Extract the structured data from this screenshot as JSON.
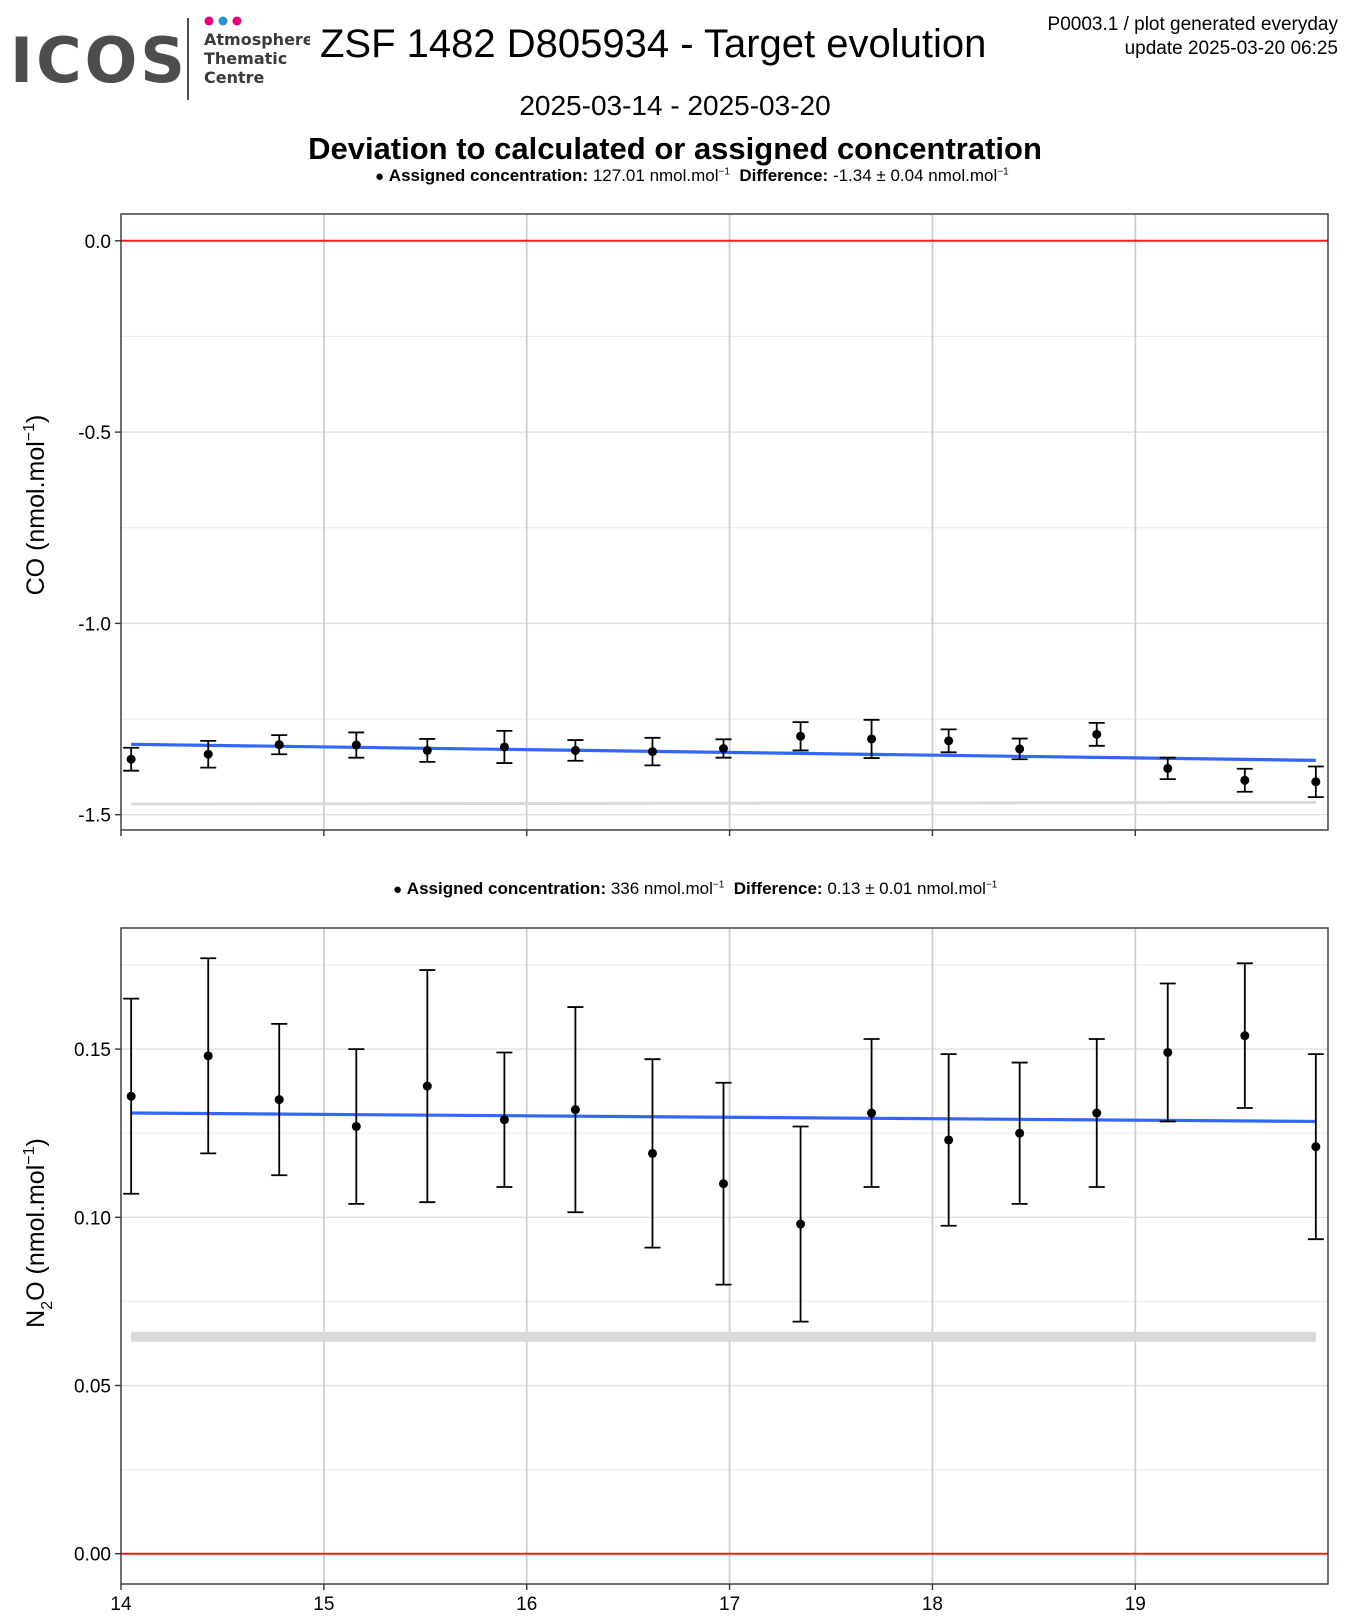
{
  "header": {
    "logo": {
      "brand": "ICOS",
      "org_lines": [
        "Atmosphere",
        "Thematic",
        "Centre"
      ],
      "dot_colors": [
        "#e6007e",
        "#2b8fd6",
        "#e6007e"
      ]
    },
    "title": "ZSF 1482 D805934 - Target evolution",
    "date_range": "2025-03-14 - 2025-03-20",
    "plot_id": "P0003.1 / plot generated everyday",
    "update": "update  2025-03-20 06:25",
    "section_title": "Deviation to calculated or assigned concentration"
  },
  "colors": {
    "point": "#000000",
    "trend": "#3366ff",
    "zero_line": "#e8231f",
    "band": "#d9d9d9"
  },
  "chart_data": [
    {
      "type": "scatter",
      "ylabel": "CO (nmol.mol",
      "ylabel_sup": "−1",
      "ylabel_tail": ")",
      "legend": {
        "assigned_label": "Assigned concentration:",
        "assigned_value": "127.01 nmol.mol",
        "difference_label": "Difference:",
        "difference_value": "-1.34 ± 0.04 nmol.mol",
        "sup": "−1"
      },
      "xlim": [
        14,
        19.95
      ],
      "ylim": [
        -1.54,
        0.07
      ],
      "xticks": [
        14,
        15,
        16,
        17,
        18,
        19
      ],
      "yticks": [
        0.0,
        -0.5,
        -1.0,
        -1.5
      ],
      "ytick_labels": [
        "0.0",
        "-0.5",
        "-1.0",
        "-1.5"
      ],
      "x": [
        14.05,
        14.43,
        14.78,
        15.16,
        15.51,
        15.89,
        16.24,
        16.62,
        16.97,
        17.35,
        17.7,
        18.08,
        18.43,
        18.81,
        19.16,
        19.54,
        19.89
      ],
      "y": [
        -1.355,
        -1.342,
        -1.317,
        -1.318,
        -1.332,
        -1.323,
        -1.332,
        -1.335,
        -1.327,
        -1.295,
        -1.302,
        -1.307,
        -1.328,
        -1.29,
        -1.379,
        -1.41,
        -1.414
      ],
      "err": [
        0.03,
        0.035,
        0.025,
        0.033,
        0.03,
        0.042,
        0.027,
        0.036,
        0.024,
        0.037,
        0.05,
        0.03,
        0.027,
        0.03,
        0.028,
        0.03,
        0.04
      ],
      "trend": {
        "x": [
          14.05,
          19.89
        ],
        "y": [
          -1.316,
          -1.358
        ]
      },
      "band": {
        "x": [
          14.05,
          19.89
        ],
        "y": [
          -1.472,
          -1.468
        ]
      },
      "zero_line": 0
    },
    {
      "type": "scatter",
      "ylabel": "N",
      "ylabel_sub": "2",
      "ylabel_tail": "O (nmol.mol",
      "ylabel_sup": "−1",
      "ylabel_end": ")",
      "legend": {
        "assigned_label": "Assigned concentration:",
        "assigned_value": "336 nmol.mol",
        "difference_label": "Difference:",
        "difference_value": "0.13 ± 0.01 nmol.mol",
        "sup": "−1"
      },
      "xlim": [
        14,
        19.95
      ],
      "ylim": [
        -0.009,
        0.186
      ],
      "xticks": [
        14,
        15,
        16,
        17,
        18,
        19
      ],
      "yticks": [
        0.0,
        0.05,
        0.1,
        0.15
      ],
      "ytick_labels": [
        "0.00",
        "0.05",
        "0.10",
        "0.15"
      ],
      "x": [
        14.05,
        14.43,
        14.78,
        15.16,
        15.51,
        15.89,
        16.24,
        16.62,
        16.97,
        17.35,
        17.7,
        18.08,
        18.43,
        18.81,
        19.16,
        19.54,
        19.89
      ],
      "y": [
        0.136,
        0.148,
        0.135,
        0.127,
        0.139,
        0.129,
        0.132,
        0.119,
        0.11,
        0.098,
        0.131,
        0.123,
        0.125,
        0.131,
        0.149,
        0.154,
        0.121
      ],
      "err": [
        0.029,
        0.029,
        0.0225,
        0.023,
        0.0345,
        0.02,
        0.0305,
        0.028,
        0.03,
        0.029,
        0.022,
        0.0255,
        0.021,
        0.022,
        0.0205,
        0.0215,
        0.0275
      ],
      "trend": {
        "x": [
          14.05,
          19.89
        ],
        "y": [
          0.131,
          0.1285
        ]
      },
      "band": {
        "x": [
          14.05,
          19.89
        ],
        "y": [
          0.0645,
          0.0645
        ]
      },
      "zero_line": 0
    }
  ]
}
